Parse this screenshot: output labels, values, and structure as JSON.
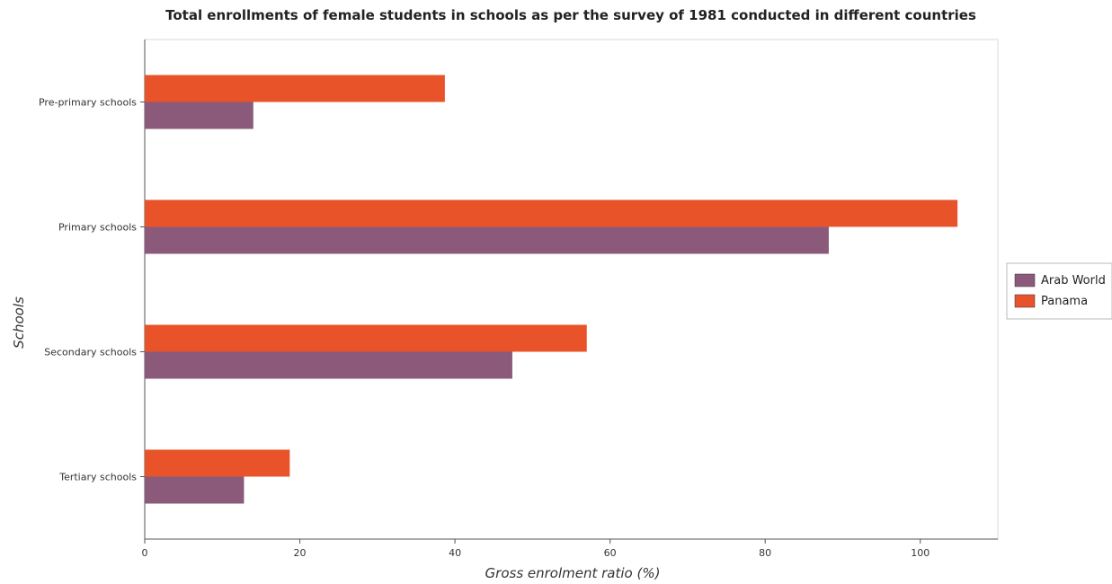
{
  "chart_data": {
    "type": "bar",
    "orientation": "horizontal",
    "title": "Total enrollments of female students in schools as per the survey of 1981 conducted in different countries",
    "xlabel": "Gross enrolment ratio (%)",
    "ylabel": "Schools",
    "categories": [
      "Pre-primary schools",
      "Primary schools",
      "Secondary schools",
      "Tertiary schools"
    ],
    "xlim": [
      0,
      110
    ],
    "xticks": [
      0,
      20,
      40,
      60,
      80,
      100
    ],
    "grid": false,
    "legend_position": "right",
    "series": [
      {
        "name": "Arab World",
        "color": "#8b5a7a",
        "values": [
          14.0,
          88.2,
          47.4,
          12.8
        ]
      },
      {
        "name": "Panama",
        "color": "#e8532a",
        "values": [
          38.7,
          104.8,
          57.0,
          18.7
        ]
      }
    ]
  }
}
